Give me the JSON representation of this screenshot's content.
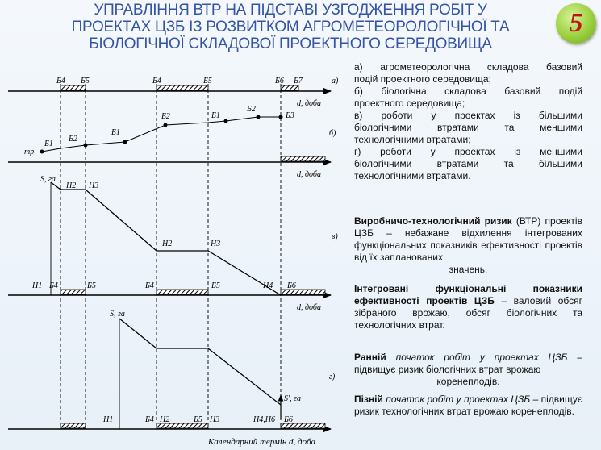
{
  "title_lines": [
    "УПРАВЛІННЯ ВТР НА ПІДСТАВІ УЗГОДЖЕННЯ РОБІТ У",
    "ПРОЕКТАХ ЦЗБ ІЗ РОЗВИТКОМ АГРОМЕТЕОРОЛОГІЧНОЇ ТА",
    "БІОЛОГІЧНОЇ СКЛАДОВОЇ ПРОЕКТНОГО СЕРЕДОВИЩА"
  ],
  "slide_number": "5",
  "colors": {
    "title": "#3554a6",
    "badge": "#9ad03c",
    "badge_text": "#c0121a",
    "axis": "#000000"
  },
  "diagram": {
    "panel_a": {
      "label": "а)",
      "axis_unit": "d, доба",
      "marks": [
        "Б4",
        "Б5",
        "Б4",
        "Б5",
        "Б6",
        "Б7"
      ]
    },
    "panel_b": {
      "label": "б)",
      "axis_unit": "d, доба",
      "start_label": "mp",
      "point_labels": [
        "Б1",
        "Б2",
        "Б1",
        "Б2",
        "Б1",
        "Б2",
        "Б3"
      ]
    },
    "panel_v": {
      "label": "в)",
      "axis_unit": "d, доба",
      "y_label": "S, га",
      "upper_labels": [
        "H2",
        "H3",
        "H2",
        "H3",
        "H4"
      ],
      "axis_labels": [
        "H1",
        "Б4",
        "Б5",
        "Б4",
        "Б5",
        "Б6"
      ]
    },
    "panel_g": {
      "label": "г)",
      "y_label": "S, га",
      "end_label": "S', га",
      "axis_labels": [
        "H1",
        "Б4",
        "H2",
        "Б5",
        "H3",
        "H4,H6",
        "Б6"
      ]
    },
    "bottom_axis": "Календарний термін  d, доба"
  },
  "list_lines": [
    "а) агрометеорологічна складова базовий",
    "подій проектного середовища;",
    "б) біологічна складова базовий подій",
    "проектного середовища;",
    "в) роботи у проектах із більшими",
    "біологічними втратами та меншими",
    "технологічними втратами;",
    "г) роботи у проектах із меншими",
    "біологічними втратами та більшими",
    "технологічними втратами."
  ],
  "risk": {
    "term": "Виробничо-технологічний ризик",
    "abbr": "(ВТР)",
    "text": "проектів ЦЗБ – небажане відхилення інтегрованих функціональних показників ефективності проектів від їх запланованих",
    "tail": "значень."
  },
  "integ": {
    "term": "Інтегровані функціональні показники ефективності проектів ЦЗБ",
    "text": "– валовий обсяг зібраного врожаю, обсяг біологічних та технологічних втрат."
  },
  "early": {
    "term": "Ранній",
    "phrase": "початок робіт у проектах ЦЗБ",
    "text": "– підвищує ризик біологічних втрат врожаю",
    "tail": "коренеплодів."
  },
  "late": {
    "term": "Пізній",
    "phrase": "початок робіт у проектах ЦЗБ",
    "text": "– підвищує ризик технологічних втрат врожаю коренеплодів."
  }
}
